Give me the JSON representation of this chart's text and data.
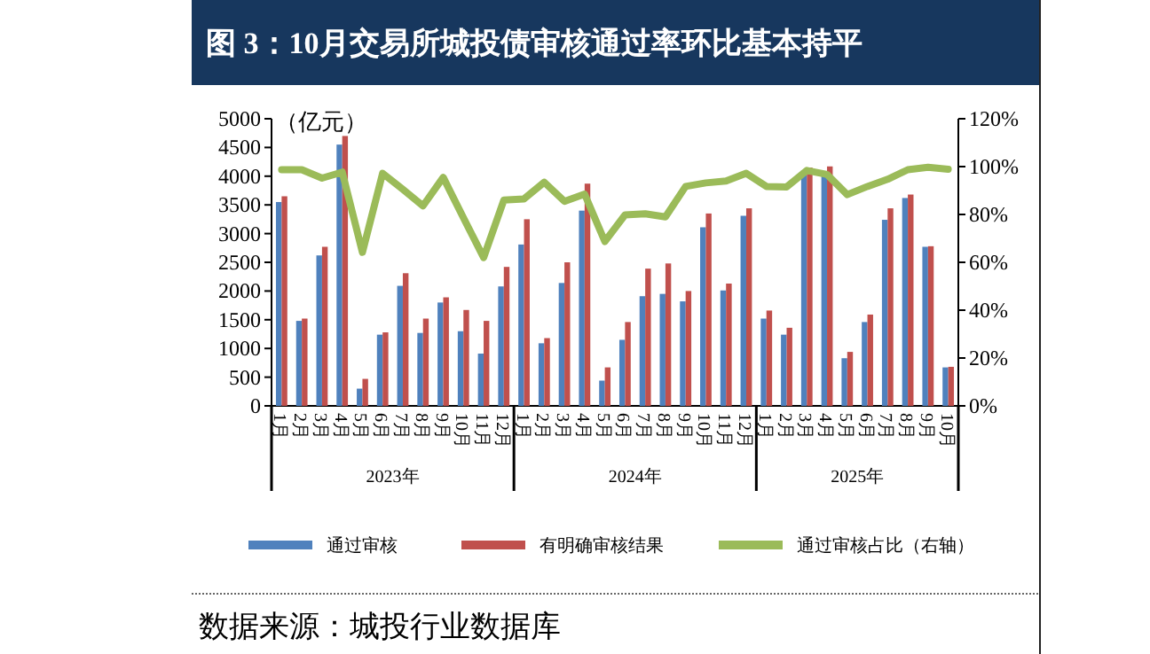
{
  "chart_data": {
    "type": "bar",
    "title": "图 3：10月交易所城投债审核通过率环比基本持平",
    "ylabel": "（亿元）",
    "categories": [
      "1月",
      "2月",
      "3月",
      "4月",
      "5月",
      "6月",
      "7月",
      "8月",
      "9月",
      "10月",
      "11月",
      "12月",
      "1月",
      "2月",
      "3月",
      "4月",
      "5月",
      "6月",
      "7月",
      "8月",
      "9月",
      "10月",
      "11月",
      "12月",
      "1月",
      "2月",
      "3月",
      "4月",
      "5月",
      "6月",
      "7月",
      "8月",
      "9月",
      "10月"
    ],
    "series": [
      {
        "name": "通过审核",
        "color": "#4f81bd",
        "values": [
          3550,
          1480,
          2620,
          4550,
          300,
          1240,
          2090,
          1270,
          1800,
          1300,
          910,
          2080,
          2810,
          1090,
          2140,
          3400,
          440,
          1150,
          1910,
          1950,
          1820,
          3110,
          2010,
          3310,
          1520,
          1240,
          4100,
          4000,
          830,
          1460,
          3240,
          3620,
          2770,
          670
        ]
      },
      {
        "name": "有明确审核结果",
        "color": "#c0504d",
        "values": [
          3650,
          1520,
          2770,
          4700,
          470,
          1280,
          2310,
          1520,
          1890,
          1670,
          1480,
          2420,
          3250,
          1180,
          2500,
          3870,
          670,
          1460,
          2390,
          2480,
          2000,
          3350,
          2130,
          3440,
          1660,
          1360,
          4150,
          4170,
          940,
          1590,
          3440,
          3680,
          2780,
          680
        ]
      },
      {
        "name": "通过审核占比（右轴）",
        "type": "line",
        "axis": "y2",
        "color": "#9bbb59",
        "values": [
          98.7,
          98.7,
          95.2,
          97.7,
          64.2,
          97.2,
          90.5,
          83.6,
          95.5,
          78.6,
          62,
          86,
          86.5,
          93.5,
          85.5,
          88.5,
          68.7,
          79.8,
          80.3,
          79,
          91.7,
          93.2,
          94,
          97.2,
          91.7,
          91.5,
          98.4,
          96.7,
          88.3,
          91.7,
          94.7,
          98.7,
          99.7,
          98.9
        ]
      }
    ],
    "ylim": [
      0,
      5000
    ],
    "yticks": [
      0,
      500,
      1000,
      1500,
      2000,
      2500,
      3000,
      3500,
      4000,
      4500,
      5000
    ],
    "y2lim": [
      0,
      120
    ],
    "y2ticks": [
      {
        "value": 0,
        "label": "0%"
      },
      {
        "value": 20,
        "label": "20%"
      },
      {
        "value": 40,
        "label": "40%"
      },
      {
        "value": 60,
        "label": "60%"
      },
      {
        "value": 80,
        "label": "80%"
      },
      {
        "value": 100,
        "label": "100%"
      },
      {
        "value": 120,
        "label": "120%"
      }
    ],
    "annotations": [
      "2023年",
      "2024年",
      "2025年",
      "数据来源：城投行业数据库"
    ],
    "legend": "bottom",
    "grid": false
  }
}
